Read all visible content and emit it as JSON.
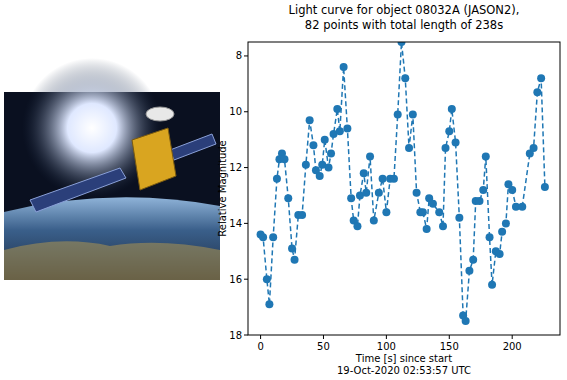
{
  "chart_data": {
    "type": "line",
    "title": "Light curve for object 08032A (JASON2),\n82 points with total length of 238s",
    "x_label": "Time [s] since start\n19-Oct-2020 02:53:57 UTC",
    "y_label": "Relative Magnitude",
    "x": [
      0,
      2,
      5,
      7,
      10,
      13,
      15,
      17,
      19,
      22,
      25,
      27,
      30,
      33,
      36,
      39,
      42,
      44,
      47,
      49,
      51,
      54,
      56,
      58,
      61,
      63,
      66,
      69,
      72,
      74,
      77,
      79,
      82,
      84,
      87,
      90,
      94,
      97,
      100,
      103,
      106,
      109,
      112,
      115,
      118,
      121,
      124,
      127,
      129,
      132,
      134,
      137,
      142,
      145,
      147,
      150,
      152,
      155,
      158,
      161,
      163,
      166,
      169,
      171,
      174,
      177,
      179,
      182,
      184,
      187,
      190,
      192,
      195,
      197,
      200,
      203,
      208,
      214,
      217,
      220,
      223,
      226
    ],
    "values": [
      14.4,
      14.5,
      16.0,
      16.9,
      14.5,
      12.4,
      11.7,
      11.5,
      11.7,
      13.1,
      14.9,
      15.3,
      13.7,
      13.7,
      11.9,
      10.3,
      11.2,
      12.1,
      12.3,
      11.9,
      11.0,
      12.0,
      11.5,
      10.8,
      9.9,
      10.7,
      8.4,
      10.6,
      13.1,
      13.9,
      14.1,
      13.0,
      12.2,
      12.9,
      11.6,
      13.9,
      12.9,
      12.4,
      13.6,
      12.4,
      12.4,
      10.1,
      7.5,
      8.8,
      11.3,
      10.1,
      12.9,
      13.6,
      13.6,
      14.2,
      13.1,
      13.3,
      13.6,
      14.1,
      11.3,
      10.7,
      9.9,
      11.1,
      13.8,
      17.3,
      17.5,
      15.7,
      15.3,
      13.2,
      13.2,
      12.8,
      11.6,
      14.5,
      16.2,
      15.0,
      15.1,
      14.3,
      14.0,
      12.6,
      12.8,
      13.4,
      13.4,
      11.5,
      11.3,
      9.3,
      8.8,
      12.7
    ],
    "color": "#1f77b4",
    "marker": "circle",
    "line_style": "dashed",
    "xlim": [
      -10,
      238
    ],
    "xticks": [
      0,
      50,
      100,
      150,
      200
    ],
    "ylim": [
      18,
      7.5
    ],
    "yticks": [
      8,
      10,
      12,
      14,
      16,
      18
    ],
    "grid": false
  }
}
